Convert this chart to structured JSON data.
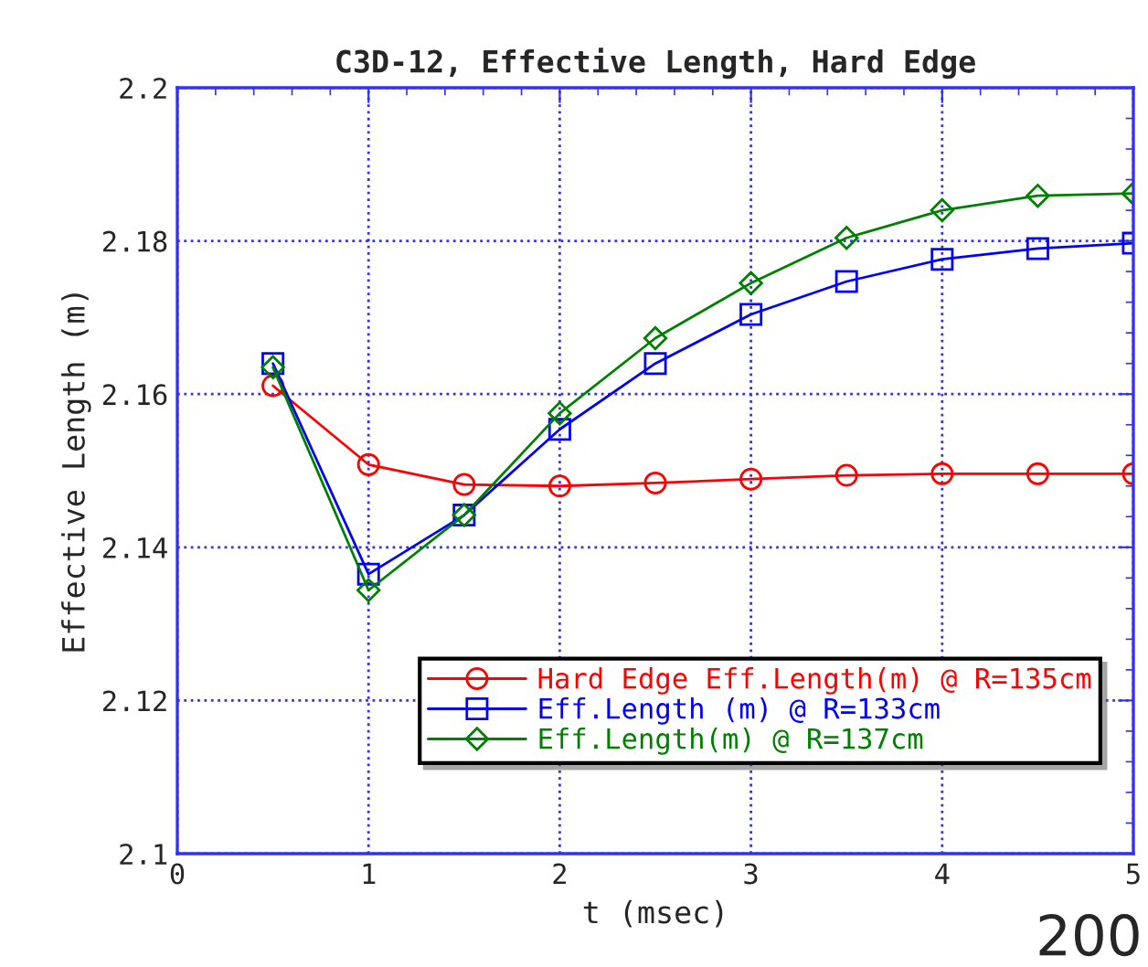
{
  "chart_data": {
    "type": "line",
    "title": "C3D-12, Effective Length, Hard Edge",
    "xlabel": "t (msec)",
    "ylabel": "Effective Length (m)",
    "x": [
      0.5,
      1,
      1.5,
      2,
      2.5,
      3,
      3.5,
      4,
      4.5,
      5
    ],
    "series": [
      {
        "name": "Hard Edge Eff.Length(m) @ R=135cm",
        "color": "#ff0000",
        "marker": "circle",
        "values": [
          2.1611,
          2.1508,
          2.1482,
          2.148,
          2.1484,
          2.1489,
          2.1494,
          2.1496,
          2.1496,
          2.1496
        ]
      },
      {
        "name": "Eff.Length (m) @ R=133cm",
        "color": "#0000ff",
        "marker": "square",
        "values": [
          2.164,
          2.1365,
          2.1442,
          2.1554,
          2.164,
          2.1704,
          2.1747,
          2.1776,
          2.179,
          2.1797
        ]
      },
      {
        "name": "Eff.Length(m) @ R=137cm",
        "color": "#008000",
        "marker": "diamond",
        "values": [
          2.1635,
          2.1344,
          2.1442,
          2.1575,
          2.1673,
          2.1745,
          2.1804,
          2.184,
          2.1859,
          2.1862
        ]
      }
    ],
    "xlim": [
      0,
      5
    ],
    "xticks": [
      0,
      1,
      2,
      3,
      4,
      5
    ],
    "ylim": [
      2.1,
      2.2
    ],
    "yticks": [
      2.1,
      2.12,
      2.14,
      2.16,
      2.18,
      2.2
    ],
    "grid": true,
    "legend": "bottom right",
    "annotations": [
      "200"
    ]
  }
}
